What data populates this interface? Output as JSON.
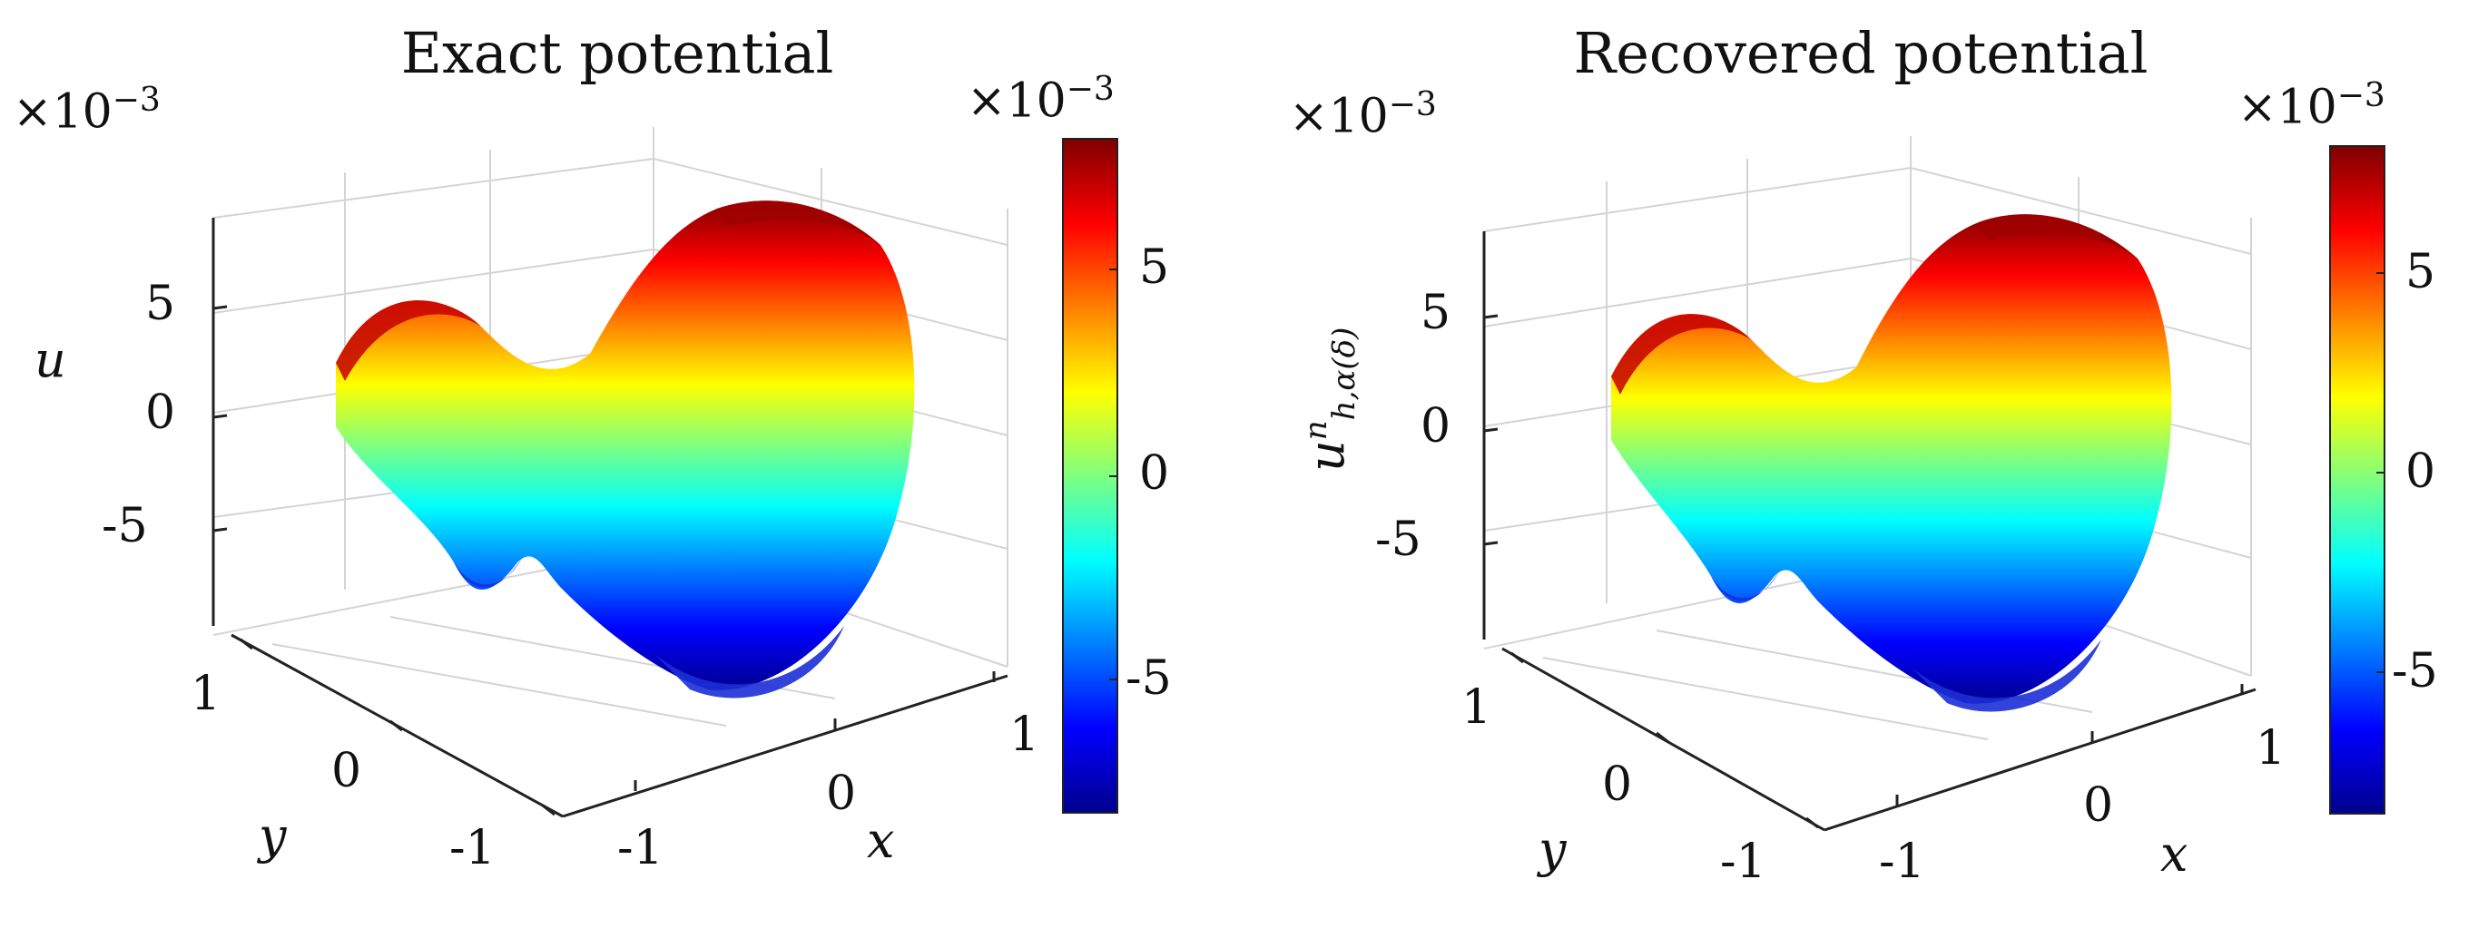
{
  "chart_data": [
    {
      "type": "surface3d",
      "title": "Exact potential",
      "xlabel": "x",
      "ylabel": "y",
      "zlabel": "u",
      "z_exponent_label": "×10",
      "z_exponent_power": "−3",
      "x_ticks": [
        "-1",
        "0",
        "1"
      ],
      "y_ticks": [
        "-1",
        "0",
        "1"
      ],
      "z_ticks": [
        "-5",
        "0",
        "5"
      ],
      "zlim": [
        -9,
        9
      ],
      "colormap": "jet",
      "colorbar": {
        "exponent_label": "×10",
        "exponent_power": "−3",
        "ticks": [
          "5",
          "0",
          "-5"
        ],
        "range": [
          -8.2,
          8.2
        ]
      }
    },
    {
      "type": "surface3d",
      "title": "Recovered potential",
      "xlabel": "x",
      "ylabel": "y",
      "zlabel_main": "u",
      "zlabel_sup": "n",
      "zlabel_sub": "h,α(δ)",
      "z_exponent_label": "×10",
      "z_exponent_power": "−3",
      "x_ticks": [
        "-1",
        "0",
        "1"
      ],
      "y_ticks": [
        "-1",
        "0",
        "1"
      ],
      "z_ticks": [
        "-5",
        "0",
        "5"
      ],
      "zlim": [
        -9,
        9
      ],
      "colormap": "jet",
      "colorbar": {
        "exponent_label": "×10",
        "exponent_power": "−3",
        "ticks": [
          "5",
          "0",
          "-5"
        ],
        "range": [
          -8.2,
          8.2
        ]
      }
    }
  ]
}
